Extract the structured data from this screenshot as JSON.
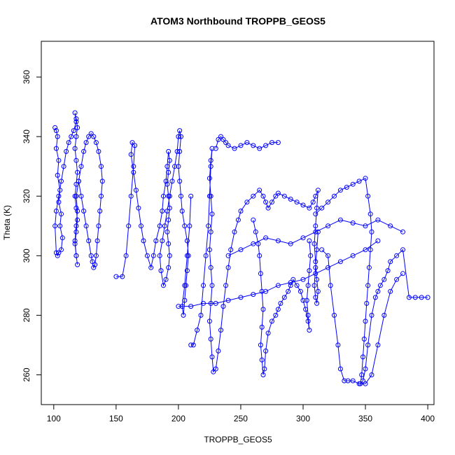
{
  "chart_data": {
    "type": "scatter",
    "title": "ATOM3 Northbound TROPPB_GEOS5",
    "xlabel": "TROPPB_GEOS5",
    "ylabel": "Theta (K)",
    "xlim": [
      90,
      405
    ],
    "ylim": [
      250,
      372
    ],
    "xticks": [
      100,
      150,
      200,
      250,
      300,
      350,
      400
    ],
    "yticks": [
      260,
      280,
      300,
      320,
      340,
      360
    ],
    "grid": false,
    "legend": "none",
    "marker": "open-circle",
    "connected": true,
    "color": "#0000ff",
    "series": [
      {
        "x": [
          101,
          102,
          103,
          102,
          104,
          103,
          105,
          104,
          106,
          105,
          107,
          106,
          104,
          103,
          102,
          101,
          102,
          104,
          106,
          108,
          110,
          112,
          114,
          116,
          118,
          117,
          118,
          119,
          118,
          117,
          118,
          119,
          118,
          117,
          118,
          119,
          118,
          117,
          118,
          119,
          118,
          117,
          118,
          119,
          118,
          120,
          122,
          124,
          126,
          128,
          130,
          132,
          134,
          136,
          138,
          139,
          138,
          137,
          136,
          135,
          134,
          133,
          132,
          131,
          130,
          128,
          126,
          124,
          122,
          120
        ],
        "y": [
          343,
          342,
          340,
          336,
          332,
          327,
          322,
          318,
          314,
          310,
          306,
          302,
          301,
          300,
          301,
          310,
          315,
          320,
          325,
          330,
          335,
          338,
          340,
          342,
          345,
          348,
          346,
          343,
          340,
          336,
          332,
          328,
          324,
          320,
          316,
          312,
          308,
          304,
          300,
          297,
          300,
          305,
          310,
          315,
          320,
          325,
          330,
          335,
          338,
          340,
          341,
          340,
          338,
          335,
          330,
          325,
          320,
          315,
          310,
          305,
          300,
          297,
          296,
          298,
          300,
          305,
          310,
          315,
          320,
          325
        ]
      },
      {
        "x": [
          150,
          155,
          158,
          160,
          162,
          164,
          165,
          163,
          162,
          164,
          166,
          168,
          170,
          172,
          175,
          178,
          180,
          182,
          185,
          187,
          188,
          190,
          191,
          192,
          193,
          192,
          191,
          192,
          193,
          192,
          191,
          192,
          193,
          192,
          190,
          188,
          186,
          185,
          187,
          189,
          191,
          193,
          195,
          197,
          199,
          200,
          201,
          202,
          201,
          200,
          201,
          202,
          203,
          205,
          207,
          208,
          207,
          206,
          205,
          204,
          203,
          205,
          207,
          209,
          210
        ],
        "y": [
          293,
          293,
          300,
          310,
          320,
          330,
          337,
          338,
          334,
          328,
          322,
          316,
          310,
          305,
          300,
          296,
          300,
          305,
          310,
          315,
          320,
          325,
          330,
          335,
          332,
          328,
          324,
          320,
          316,
          312,
          308,
          304,
          300,
          296,
          292,
          290,
          295,
          300,
          305,
          310,
          315,
          320,
          325,
          330,
          335,
          340,
          342,
          340,
          335,
          330,
          325,
          320,
          315,
          310,
          305,
          300,
          295,
          290,
          285,
          280,
          283,
          290,
          300,
          310,
          320
        ]
      },
      {
        "x": [
          210,
          212,
          215,
          218,
          220,
          222,
          224,
          225,
          226,
          227,
          226,
          225,
          226,
          227,
          226,
          225,
          226,
          227,
          226,
          225,
          226,
          227,
          228,
          230,
          232,
          234,
          236,
          238,
          240,
          242,
          245,
          248,
          250,
          255,
          260,
          265,
          268,
          270,
          272,
          275,
          278,
          280,
          285,
          290,
          295,
          300,
          305,
          308,
          310,
          312,
          311,
          310,
          309,
          310,
          311,
          312,
          311,
          310,
          309,
          310,
          311,
          312
        ],
        "y": [
          270,
          270,
          275,
          280,
          290,
          300,
          310,
          320,
          330,
          336,
          332,
          326,
          320,
          314,
          308,
          302,
          296,
          290,
          284,
          278,
          272,
          266,
          261,
          262,
          268,
          275,
          283,
          290,
          296,
          302,
          308,
          312,
          315,
          318,
          320,
          322,
          320,
          318,
          316,
          318,
          320,
          321,
          320,
          319,
          318,
          317,
          316,
          318,
          320,
          322,
          316,
          310,
          304,
          298,
          292,
          288,
          284,
          286,
          290,
          296,
          302,
          308
        ]
      },
      {
        "x": [
          230,
          232,
          234,
          236,
          238,
          240,
          245,
          250,
          255,
          260,
          265,
          270,
          275,
          280
        ],
        "y": [
          336,
          339,
          340,
          339,
          338,
          337,
          336,
          337,
          338,
          337,
          336,
          337,
          338,
          338
        ]
      },
      {
        "x": [
          260,
          262,
          264,
          265,
          266,
          267,
          268,
          267,
          266,
          267,
          268,
          269,
          270,
          272,
          275,
          278,
          280,
          282,
          285,
          288,
          290,
          292,
          295,
          298,
          300,
          302,
          304,
          305,
          304,
          303,
          304,
          305,
          306,
          305
        ],
        "y": [
          312,
          308,
          304,
          300,
          294,
          288,
          282,
          276,
          270,
          265,
          260,
          262,
          268,
          274,
          278,
          280,
          282,
          284,
          286,
          288,
          290,
          292,
          290,
          288,
          285,
          282,
          278,
          275,
          280,
          285,
          290,
          295,
          300,
          305
        ]
      },
      {
        "x": [
          310,
          315,
          320,
          325,
          330,
          335,
          340,
          345,
          350,
          352,
          354,
          355,
          354,
          353,
          352,
          351,
          350,
          349,
          348,
          347,
          346,
          348,
          350,
          352,
          355,
          358,
          360,
          362,
          365,
          368,
          370,
          375,
          380,
          385,
          390,
          395,
          400
        ],
        "y": [
          314,
          316,
          318,
          320,
          322,
          323,
          324,
          325,
          326,
          320,
          314,
          308,
          302,
          296,
          290,
          284,
          278,
          272,
          266,
          260,
          257,
          258,
          262,
          270,
          280,
          286,
          288,
          290,
          292,
          295,
          298,
          300,
          302,
          286,
          286,
          286,
          286
        ]
      },
      {
        "x": [
          315,
          320,
          322,
          325,
          328,
          330,
          333,
          336,
          340,
          345,
          350,
          355,
          360,
          365,
          370,
          375,
          380
        ],
        "y": [
          302,
          300,
          290,
          280,
          270,
          262,
          258,
          258,
          258,
          257,
          257,
          260,
          270,
          280,
          288,
          292,
          294
        ]
      },
      {
        "x": [
          200,
          210,
          220,
          230,
          240,
          250,
          260,
          270,
          280,
          290,
          300,
          310,
          320,
          330,
          340,
          350,
          360
        ],
        "y": [
          283,
          283,
          284,
          284,
          285,
          286,
          287,
          288,
          290,
          291,
          292,
          294,
          296,
          298,
          300,
          302,
          305
        ]
      },
      {
        "x": [
          240,
          250,
          260,
          270,
          280,
          290,
          300,
          310,
          320,
          330,
          340,
          350,
          360,
          370,
          380
        ],
        "y": [
          300,
          302,
          304,
          306,
          305,
          304,
          306,
          308,
          310,
          312,
          311,
          310,
          312,
          310,
          308
        ]
      }
    ]
  }
}
